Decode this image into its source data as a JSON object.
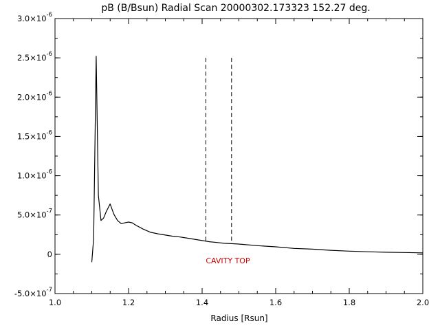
{
  "chart_data": {
    "type": "line",
    "title": "pB (B/Bsun) Radial Scan 20000302.173323 152.27 deg.",
    "xlabel": "Radius [Rsun]",
    "ylabel": "",
    "xlim": [
      1.0,
      2.0
    ],
    "ylim": [
      -5e-07,
      3e-06
    ],
    "grid": false,
    "x_ticks": [
      1.0,
      1.2,
      1.4,
      1.6,
      1.8,
      2.0
    ],
    "x_tick_labels": [
      "1.0",
      "1.2",
      "1.4",
      "1.6",
      "1.8",
      "2.0"
    ],
    "y_ticks": [
      {
        "value": -5e-07,
        "mantissa": "-5.0",
        "exponent": "-7"
      },
      {
        "value": 0,
        "mantissa": "0",
        "exponent": ""
      },
      {
        "value": 5e-07,
        "mantissa": "5.0",
        "exponent": "-7"
      },
      {
        "value": 1e-06,
        "mantissa": "1.0",
        "exponent": "-6"
      },
      {
        "value": 1.5e-06,
        "mantissa": "1.5",
        "exponent": "-6"
      },
      {
        "value": 2e-06,
        "mantissa": "2.0",
        "exponent": "-6"
      },
      {
        "value": 2.5e-06,
        "mantissa": "2.5",
        "exponent": "-6"
      },
      {
        "value": 3e-06,
        "mantissa": "3.0",
        "exponent": "-6"
      }
    ],
    "times_symbol": "×10",
    "series": [
      {
        "color": "#000000",
        "x": [
          1.1,
          1.105,
          1.112,
          1.118,
          1.125,
          1.132,
          1.14,
          1.15,
          1.16,
          1.17,
          1.18,
          1.19,
          1.2,
          1.21,
          1.22,
          1.24,
          1.26,
          1.28,
          1.3,
          1.32,
          1.34,
          1.36,
          1.38,
          1.4,
          1.42,
          1.44,
          1.46,
          1.48,
          1.5,
          1.55,
          1.6,
          1.65,
          1.7,
          1.75,
          1.8,
          1.85,
          1.9,
          1.95,
          2.0
        ],
        "y": [
          -1e-07,
          2e-07,
          2.52e-06,
          7.5e-07,
          4.3e-07,
          4.6e-07,
          5.5e-07,
          6.4e-07,
          5.1e-07,
          4.3e-07,
          3.9e-07,
          4e-07,
          4.1e-07,
          4e-07,
          3.7e-07,
          3.2e-07,
          2.8e-07,
          2.6e-07,
          2.45e-07,
          2.3e-07,
          2.2e-07,
          2.05e-07,
          1.9e-07,
          1.75e-07,
          1.6e-07,
          1.5e-07,
          1.4e-07,
          1.35e-07,
          1.3e-07,
          1.1e-07,
          9.5e-08,
          7.5e-08,
          6.5e-08,
          5e-08,
          4e-08,
          3.2e-08,
          2.6e-08,
          2.2e-08,
          1.8e-08
        ]
      }
    ],
    "reference_lines": [
      {
        "x": 1.41,
        "y_top": 2.5e-06,
        "y_bottom": 1.5e-07,
        "style": "dashed"
      },
      {
        "x": 1.48,
        "y_top": 2.5e-06,
        "y_bottom": 1.3e-07,
        "style": "dashed"
      }
    ],
    "annotation": {
      "text": "CAVITY TOP",
      "x": 1.41,
      "y": -8e-08,
      "color": "#cc0000"
    }
  }
}
